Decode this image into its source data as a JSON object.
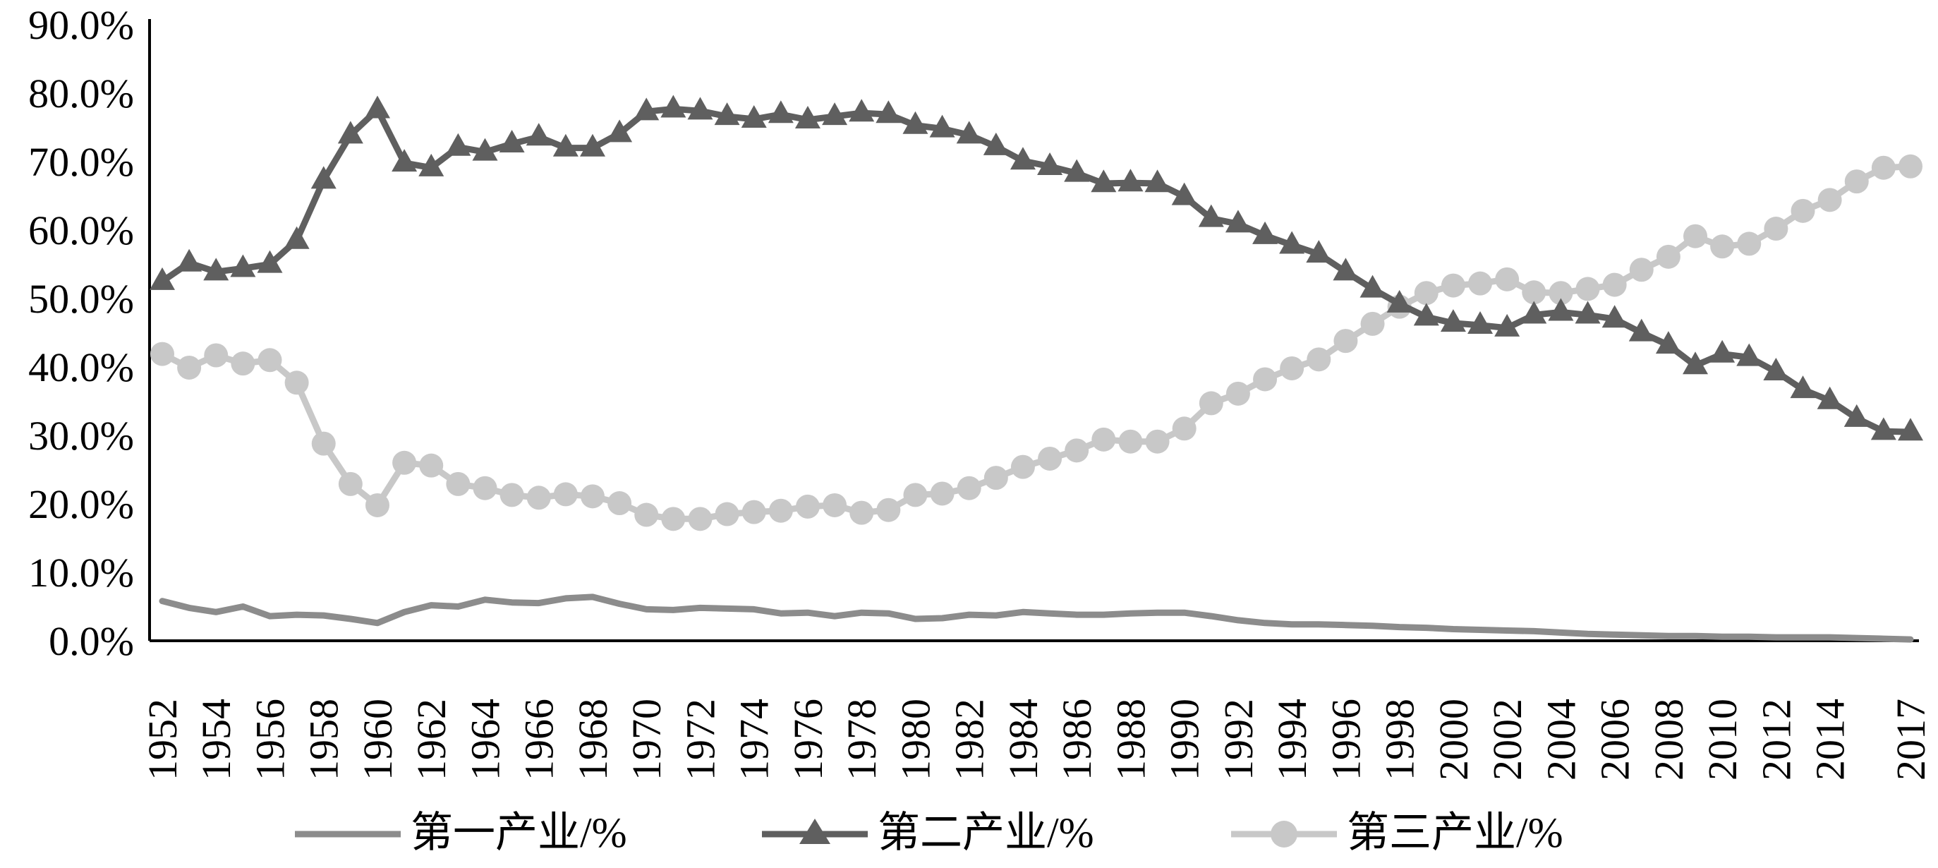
{
  "chart_data": {
    "type": "line",
    "title": "",
    "xlabel": "",
    "ylabel": "",
    "ylim": [
      0,
      90
    ],
    "y_ticks": [
      "0.0%",
      "10.0%",
      "20.0%",
      "30.0%",
      "40.0%",
      "50.0%",
      "60.0%",
      "70.0%",
      "80.0%",
      "90.0%"
    ],
    "x": [
      "1952",
      "1953",
      "1954",
      "1955",
      "1956",
      "1957",
      "1958",
      "1959",
      "1960",
      "1961",
      "1962",
      "1963",
      "1964",
      "1965",
      "1966",
      "1967",
      "1968",
      "1969",
      "1970",
      "1971",
      "1972",
      "1973",
      "1974",
      "1975",
      "1976",
      "1977",
      "1978",
      "1979",
      "1980",
      "1981",
      "1982",
      "1983",
      "1984",
      "1985",
      "1986",
      "1987",
      "1988",
      "1989",
      "1990",
      "1991",
      "1992",
      "1993",
      "1994",
      "1995",
      "1996",
      "1997",
      "1998",
      "1999",
      "2000",
      "2001",
      "2002",
      "2003",
      "2004",
      "2005",
      "2006",
      "2007",
      "2008",
      "2009",
      "2010",
      "2011",
      "2012",
      "2013",
      "2014",
      "2015",
      "2016",
      "2017"
    ],
    "x_tick_labels": [
      "1952",
      "1954",
      "1956",
      "1958",
      "1960",
      "1962",
      "1964",
      "1966",
      "1968",
      "1970",
      "1972",
      "1974",
      "1976",
      "1978",
      "1980",
      "1982",
      "1984",
      "1986",
      "1988",
      "1990",
      "1992",
      "1994",
      "1996",
      "1998",
      "2000",
      "2002",
      "2004",
      "2006",
      "2008",
      "2010",
      "2012",
      "2014",
      "2017"
    ],
    "grid": false,
    "legend_position": "bottom",
    "series": [
      {
        "name": "第一产业/%",
        "color": "#8c8c8c",
        "marker": "none",
        "values": [
          5.8,
          4.8,
          4.2,
          5.0,
          3.6,
          3.8,
          3.7,
          3.2,
          2.6,
          4.2,
          5.2,
          5.0,
          6.0,
          5.6,
          5.5,
          6.2,
          6.4,
          5.4,
          4.6,
          4.5,
          4.8,
          4.7,
          4.6,
          4.0,
          4.1,
          3.6,
          4.1,
          4.0,
          3.2,
          3.3,
          3.8,
          3.7,
          4.2,
          4.0,
          3.8,
          3.8,
          4.0,
          4.1,
          4.1,
          3.6,
          3.0,
          2.6,
          2.4,
          2.4,
          2.3,
          2.2,
          2.0,
          1.9,
          1.7,
          1.6,
          1.5,
          1.4,
          1.2,
          1.0,
          0.9,
          0.8,
          0.7,
          0.7,
          0.6,
          0.6,
          0.5,
          0.5,
          0.5,
          0.4,
          0.3,
          0.2
        ]
      },
      {
        "name": "第二产业/%",
        "color": "#5f5f5f",
        "marker": "triangle",
        "values": [
          52.5,
          55.2,
          53.9,
          54.4,
          55.0,
          58.5,
          67.3,
          73.9,
          77.6,
          69.8,
          69.1,
          72.1,
          71.4,
          72.6,
          73.6,
          72.0,
          72.0,
          74.1,
          77.3,
          77.7,
          77.4,
          76.6,
          76.2,
          76.9,
          76.1,
          76.6,
          77.1,
          76.9,
          75.3,
          74.8,
          73.9,
          72.2,
          70.1,
          69.3,
          68.3,
          66.8,
          66.9,
          66.8,
          64.9,
          61.7,
          60.9,
          59.2,
          57.8,
          56.5,
          53.9,
          51.4,
          49.2,
          47.3,
          46.4,
          46.1,
          45.7,
          47.6,
          48.0,
          47.6,
          47.0,
          45.0,
          43.2,
          40.2,
          41.9,
          41.4,
          39.3,
          36.7,
          35.1,
          32.5,
          30.6,
          30.5
        ]
      },
      {
        "name": "第三产业/%",
        "color": "#c8c8c8",
        "marker": "circle",
        "values": [
          41.9,
          39.9,
          41.7,
          40.5,
          41.0,
          37.7,
          28.8,
          22.9,
          19.8,
          26.0,
          25.6,
          22.9,
          22.3,
          21.3,
          20.9,
          21.4,
          21.1,
          20.1,
          18.4,
          17.8,
          17.8,
          18.5,
          18.8,
          19.0,
          19.6,
          19.8,
          18.7,
          19.1,
          21.3,
          21.5,
          22.3,
          23.8,
          25.4,
          26.6,
          27.8,
          29.4,
          29.1,
          29.1,
          31.0,
          34.7,
          36.1,
          38.2,
          39.8,
          41.1,
          43.8,
          46.3,
          48.8,
          50.8,
          51.9,
          52.2,
          52.8,
          50.9,
          50.8,
          51.4,
          52.0,
          54.2,
          56.1,
          59.1,
          57.6,
          58.0,
          60.2,
          62.8,
          64.4,
          67.1,
          69.1,
          69.3
        ]
      }
    ]
  }
}
